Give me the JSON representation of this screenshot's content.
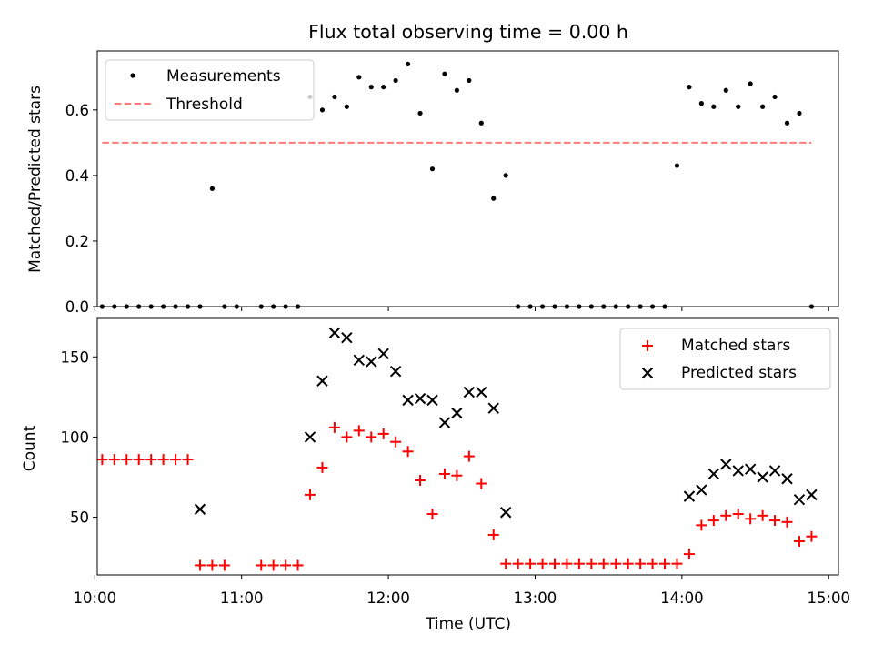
{
  "chart_data": [
    {
      "type": "scatter",
      "title": "Flux total observing time = 0.00 h",
      "ylabel": "Matched/Predicted stars",
      "xlabel": "",
      "ylim": [
        0,
        0.78
      ],
      "yticks": [
        0.0,
        0.2,
        0.4,
        0.6
      ],
      "ytick_labels": [
        "0.0",
        "0.2",
        "0.4",
        "0.6"
      ],
      "legend_position": "upper left",
      "series": [
        {
          "name": "Measurements",
          "marker": "dot",
          "color": "#000000",
          "x": [
            "10:03",
            "10:08",
            "10:13",
            "10:18",
            "10:23",
            "10:28",
            "10:33",
            "10:38",
            "10:43",
            "10:48",
            "10:53",
            "10:58",
            "11:08",
            "11:13",
            "11:18",
            "11:23",
            "11:28",
            "11:33",
            "11:38",
            "11:43",
            "11:48",
            "11:53",
            "11:58",
            "12:03",
            "12:08",
            "12:13",
            "12:18",
            "12:23",
            "12:28",
            "12:33",
            "12:38",
            "12:43",
            "12:48",
            "12:53",
            "12:58",
            "13:03",
            "13:08",
            "13:13",
            "13:18",
            "13:23",
            "13:28",
            "13:33",
            "13:38",
            "13:43",
            "13:48",
            "13:53",
            "13:58",
            "14:03",
            "14:08",
            "14:13",
            "14:18",
            "14:23",
            "14:28",
            "14:33",
            "14:38",
            "14:43",
            "14:48",
            "14:53"
          ],
          "y": [
            0,
            0,
            0,
            0,
            0,
            0,
            0,
            0,
            0,
            0.36,
            0,
            0,
            0,
            0,
            0,
            0,
            0.64,
            0.6,
            0.64,
            0.61,
            0.7,
            0.67,
            0.67,
            0.69,
            0.74,
            0.59,
            0.42,
            0.71,
            0.66,
            0.69,
            0.56,
            0.33,
            0.4,
            0,
            0,
            0,
            0,
            0,
            0,
            0,
            0,
            0,
            0,
            0,
            0,
            0,
            0.43,
            0.67,
            0.62,
            0.61,
            0.66,
            0.61,
            0.68,
            0.61,
            0.64,
            0.56,
            0.59,
            0
          ]
        },
        {
          "name": "Threshold",
          "style": "dashed",
          "color": "#ff7b7b",
          "x": [
            "10:03",
            "14:53"
          ],
          "y": [
            0.5,
            0.5
          ]
        }
      ]
    },
    {
      "type": "scatter",
      "title": "",
      "ylabel": "Count",
      "xlabel": "Time (UTC)",
      "ylim": [
        14,
        174
      ],
      "yticks": [
        50,
        100,
        150
      ],
      "ytick_labels": [
        "50",
        "100",
        "150"
      ],
      "xticks": [
        "10:00",
        "11:00",
        "12:00",
        "13:00",
        "14:00",
        "15:00"
      ],
      "legend_position": "upper right",
      "series": [
        {
          "name": "Matched stars",
          "marker": "plus",
          "color": "#ff0000",
          "x": [
            "10:03",
            "10:08",
            "10:13",
            "10:18",
            "10:23",
            "10:28",
            "10:33",
            "10:38",
            "10:43",
            "10:48",
            "10:53",
            "11:08",
            "11:13",
            "11:18",
            "11:23",
            "11:28",
            "11:33",
            "11:38",
            "11:43",
            "11:48",
            "11:53",
            "11:58",
            "12:03",
            "12:08",
            "12:13",
            "12:18",
            "12:23",
            "12:28",
            "12:33",
            "12:38",
            "12:43",
            "12:48",
            "12:53",
            "12:58",
            "13:03",
            "13:08",
            "13:13",
            "13:18",
            "13:23",
            "13:28",
            "13:33",
            "13:38",
            "13:43",
            "13:48",
            "13:53",
            "13:58",
            "14:03",
            "14:08",
            "14:13",
            "14:18",
            "14:23",
            "14:28",
            "14:33",
            "14:38",
            "14:43",
            "14:48",
            "14:53"
          ],
          "y": [
            86,
            86,
            86,
            86,
            86,
            86,
            86,
            86,
            20,
            20,
            20,
            20,
            20,
            20,
            20,
            64,
            81,
            106,
            100,
            104,
            100,
            102,
            97,
            91,
            73,
            52,
            77,
            76,
            88,
            71,
            39,
            21,
            21,
            21,
            21,
            21,
            21,
            21,
            21,
            21,
            21,
            21,
            21,
            21,
            21,
            21,
            27,
            45,
            48,
            51,
            52,
            49,
            51,
            48,
            47,
            35,
            38
          ]
        },
        {
          "name": "Predicted stars",
          "marker": "x",
          "color": "#000000",
          "x": [
            "10:43",
            "11:28",
            "11:33",
            "11:38",
            "11:43",
            "11:48",
            "11:53",
            "11:58",
            "12:03",
            "12:08",
            "12:13",
            "12:18",
            "12:23",
            "12:28",
            "12:33",
            "12:38",
            "12:43",
            "12:48",
            "14:03",
            "14:08",
            "14:13",
            "14:18",
            "14:23",
            "14:28",
            "14:33",
            "14:38",
            "14:43",
            "14:48",
            "14:53"
          ],
          "y": [
            55,
            100,
            135,
            165,
            162,
            148,
            147,
            152,
            141,
            123,
            124,
            123,
            109,
            115,
            128,
            128,
            118,
            53,
            63,
            67,
            77,
            83,
            79,
            80,
            75,
            79,
            74,
            61,
            64
          ]
        }
      ]
    }
  ]
}
